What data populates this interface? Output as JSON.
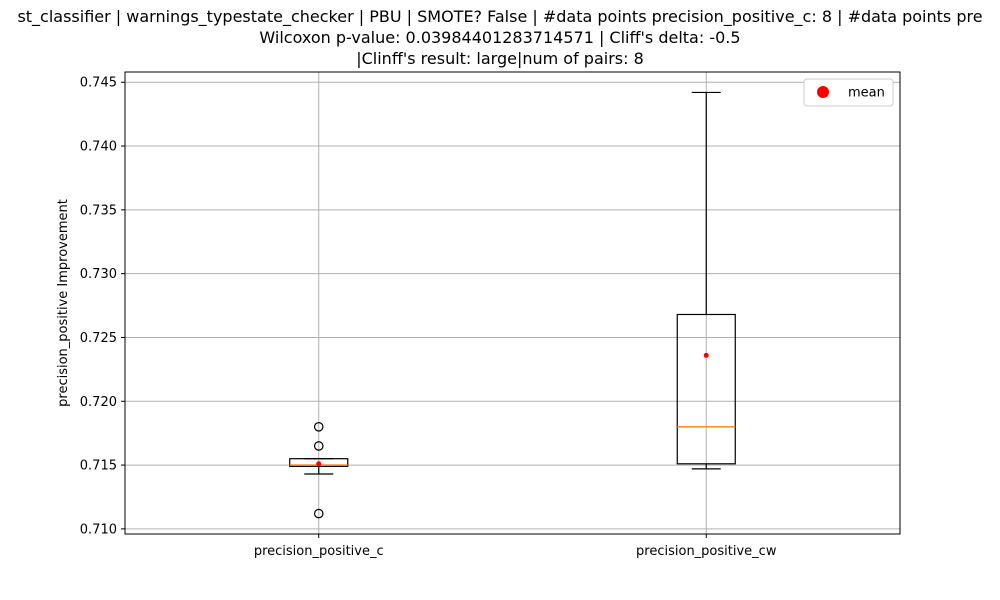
{
  "chart_data": {
    "type": "box",
    "title_lines": [
      "st_classifier | warnings_typestate_checker | PBU | SMOTE? False | #data points precision_positive_c: 8 | #data points pre",
      "Wilcoxon p-value: 0.03984401283714571 | Cliff's delta: -0.5",
      "|Clinff's result: large|num of pairs: 8"
    ],
    "ylabel": "precision_positive Improvement",
    "xlabel": "",
    "categories": [
      "precision_positive_c",
      "precision_positive_cw"
    ],
    "ylim": [
      0.7096,
      0.7458
    ],
    "yticks": [
      0.71,
      0.715,
      0.72,
      0.725,
      0.73,
      0.735,
      0.74,
      0.745
    ],
    "ytick_labels": [
      "0.710",
      "0.715",
      "0.720",
      "0.725",
      "0.730",
      "0.735",
      "0.740",
      "0.745"
    ],
    "grid": true,
    "legend": {
      "label": "mean",
      "placement": "top-right"
    },
    "boxes": [
      {
        "name": "precision_positive_c",
        "whisker_low": 0.7143,
        "q1": 0.7149,
        "median": 0.715,
        "q3": 0.7155,
        "whisker_high": 0.7155,
        "mean": 0.7151,
        "outliers": [
          0.718,
          0.7165,
          0.7112
        ]
      },
      {
        "name": "precision_positive_cw",
        "whisker_low": 0.7147,
        "q1": 0.7151,
        "median": 0.718,
        "q3": 0.7268,
        "whisker_high": 0.7442,
        "mean": 0.7236,
        "outliers": []
      }
    ],
    "colors": {
      "box": "#000000",
      "median": "#ff7f0e",
      "mean": "#ff0000",
      "grid": "#b0b0b0"
    }
  }
}
